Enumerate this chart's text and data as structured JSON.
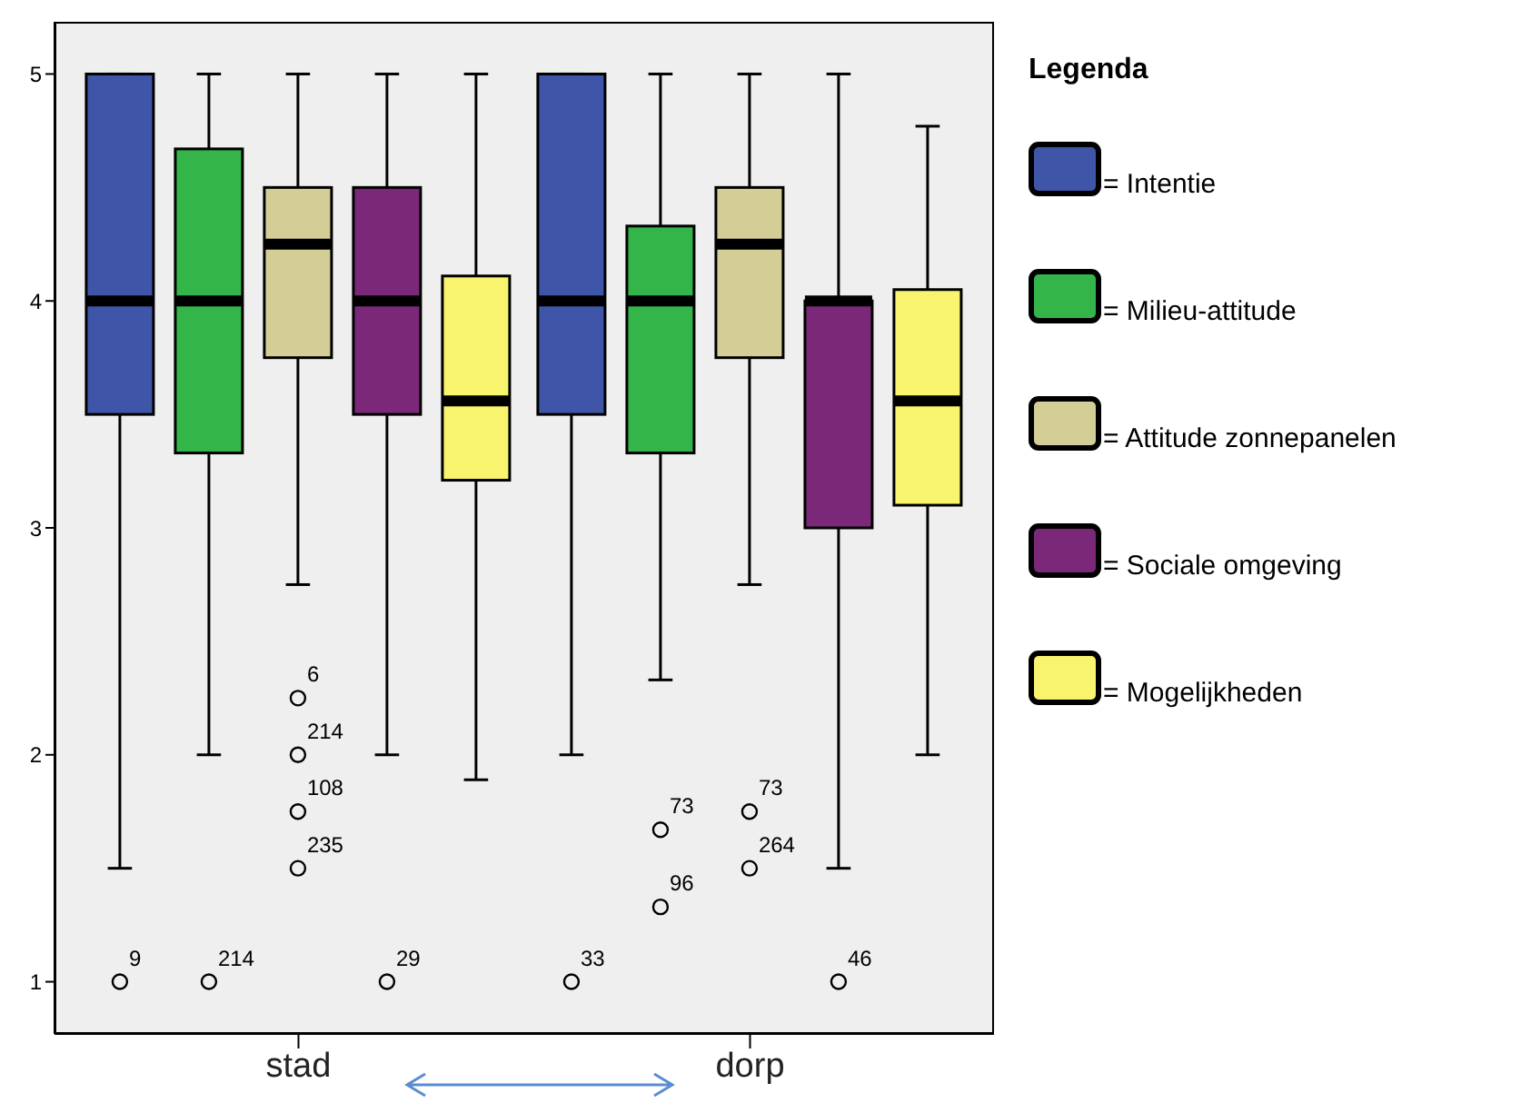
{
  "chart_data": {
    "type": "box",
    "categories": [
      "stad",
      "dorp"
    ],
    "legend": "right",
    "legend_title": "Legenda",
    "ylim": [
      0.77,
      5.23
    ],
    "yticks": [
      1,
      2,
      3,
      4,
      5
    ],
    "series": [
      {
        "name": "= Intentie",
        "color": "#3f56a8",
        "boxes": [
          {
            "low": 1.5,
            "q1": 3.5,
            "median": 4,
            "q3": 5,
            "high": 5,
            "outliers": [
              1
            ]
          },
          {
            "low": 2,
            "q1": 3.5,
            "median": 4,
            "q3": 5,
            "high": 5,
            "outliers": [
              1
            ]
          }
        ]
      },
      {
        "name": "= Milieu-attitude",
        "color": "#33b54a",
        "boxes": [
          {
            "low": 2,
            "q1": 3.33,
            "median": 4,
            "q3": 4.67,
            "high": 5,
            "outliers": [
              1
            ]
          },
          {
            "low": 2.33,
            "q1": 3.33,
            "median": 4,
            "q3": 4.33,
            "high": 5,
            "outliers": [
              1.67,
              1.33
            ]
          }
        ]
      },
      {
        "name": "= Attitude zonnepanelen",
        "color": "#d3cd96",
        "boxes": [
          {
            "low": 2.75,
            "q1": 3.75,
            "median": 4.25,
            "q3": 4.5,
            "high": 5,
            "outliers": [
              2.25,
              2,
              1.75,
              1.5
            ]
          },
          {
            "low": 2.75,
            "q1": 3.75,
            "median": 4.25,
            "q3": 4.5,
            "high": 5,
            "outliers": [
              1.75,
              1.5
            ]
          }
        ]
      },
      {
        "name": "= Sociale omgeving",
        "color": "#7b2878",
        "boxes": [
          {
            "low": 2,
            "q1": 3.5,
            "median": 4,
            "q3": 4.5,
            "high": 5,
            "outliers": [
              1
            ]
          },
          {
            "low": 1.5,
            "q1": 3,
            "median": 4,
            "q3": 4,
            "high": 5,
            "outliers": [
              1
            ]
          }
        ]
      },
      {
        "name": "= Mogelijkheden",
        "color": "#f9f46e",
        "boxes": [
          {
            "low": 1.89,
            "q1": 3.21,
            "median": 3.56,
            "q3": 4.11,
            "high": 5
          },
          {
            "low": 2,
            "q1": 3.1,
            "median": 3.56,
            "q3": 4.05,
            "high": 4.77
          }
        ]
      }
    ],
    "annotations": [
      "9",
      "33",
      "214",
      "73",
      "96",
      "6",
      "214",
      "108",
      "235",
      "73",
      "264",
      "29",
      "46"
    ]
  }
}
